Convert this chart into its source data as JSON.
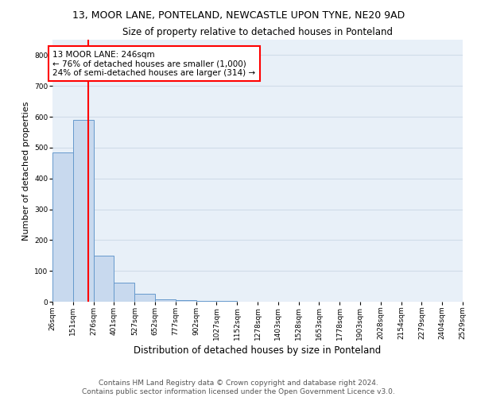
{
  "title1": "13, MOOR LANE, PONTELAND, NEWCASTLE UPON TYNE, NE20 9AD",
  "title2": "Size of property relative to detached houses in Ponteland",
  "xlabel": "Distribution of detached houses by size in Ponteland",
  "ylabel": "Number of detached properties",
  "bin_edges": [
    26,
    151,
    276,
    401,
    527,
    652,
    777,
    902,
    1027,
    1152,
    1278,
    1403,
    1528,
    1653,
    1778,
    1903,
    2028,
    2154,
    2279,
    2404,
    2529
  ],
  "bar_heights": [
    485,
    590,
    150,
    63,
    25,
    8,
    5,
    3,
    2,
    1,
    1,
    1,
    0,
    0,
    0,
    0,
    0,
    0,
    0,
    0
  ],
  "bar_color": "#c8d9ee",
  "bar_edgecolor": "#6699cc",
  "vline_x": 246,
  "vline_color": "red",
  "annotation_text": "13 MOOR LANE: 246sqm\n← 76% of detached houses are smaller (1,000)\n24% of semi-detached houses are larger (314) →",
  "annotation_box_color": "white",
  "annotation_box_edgecolor": "red",
  "ylim": [
    0,
    850
  ],
  "yticks": [
    0,
    100,
    200,
    300,
    400,
    500,
    600,
    700,
    800
  ],
  "footer1": "Contains HM Land Registry data © Crown copyright and database right 2024.",
  "footer2": "Contains public sector information licensed under the Open Government Licence v3.0.",
  "background_color": "#e8f0f8",
  "grid_color": "#d0dce8",
  "title1_fontsize": 9,
  "title2_fontsize": 8.5,
  "ylabel_fontsize": 8,
  "xlabel_fontsize": 8.5,
  "tick_fontsize": 6.5,
  "annot_fontsize": 7.5,
  "footer_fontsize": 6.5
}
